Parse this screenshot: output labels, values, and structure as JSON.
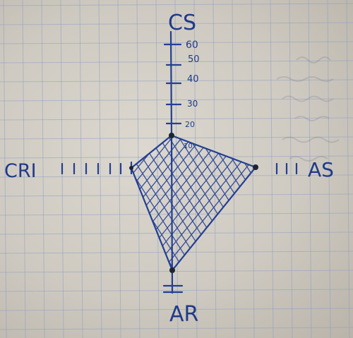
{
  "colors": {
    "ink": "#233f94",
    "grid": "#8fa0c2",
    "paper": "#d6d2c9"
  },
  "axes": {
    "top": "CS",
    "left": "CRI",
    "right": "AS",
    "bottom": "AR"
  },
  "tick_labels": [
    "10",
    "20",
    "30",
    "40",
    "50",
    "60"
  ],
  "shape_points": [
    "CS",
    "AS",
    "AR",
    "CRI"
  ]
}
